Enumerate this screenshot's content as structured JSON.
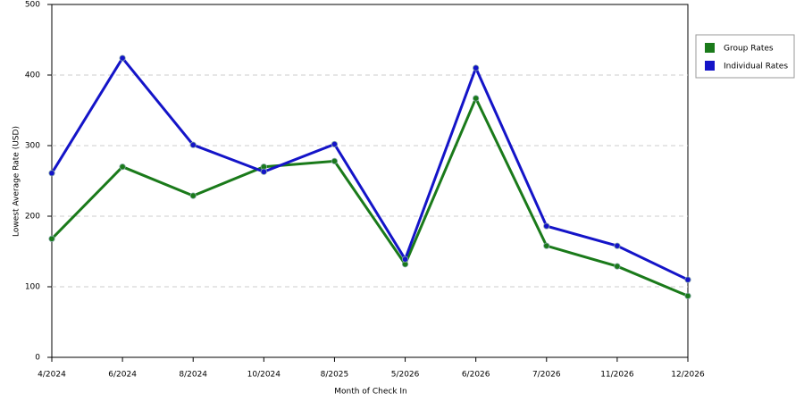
{
  "chart_data": {
    "type": "line",
    "x_label": "Month of Check In",
    "y_label": "Lowest Average Rate (USD)",
    "categories": [
      "4/2024",
      "6/2024",
      "8/2024",
      "10/2024",
      "8/2025",
      "5/2026",
      "6/2026",
      "7/2026",
      "11/2026",
      "12/2026"
    ],
    "series": [
      {
        "name": "Group Rates",
        "color": "#1a7a1a",
        "values": [
          168,
          270,
          229,
          270,
          278,
          132,
          367,
          158,
          129,
          87
        ]
      },
      {
        "name": "Individual Rates",
        "color": "#1414c8",
        "values": [
          261,
          424,
          301,
          263,
          302,
          139,
          410,
          186,
          158,
          110
        ]
      }
    ],
    "ylim": [
      0,
      500
    ],
    "yticks": [
      0,
      100,
      200,
      300,
      400,
      500
    ],
    "grid": true,
    "legend": "right"
  }
}
